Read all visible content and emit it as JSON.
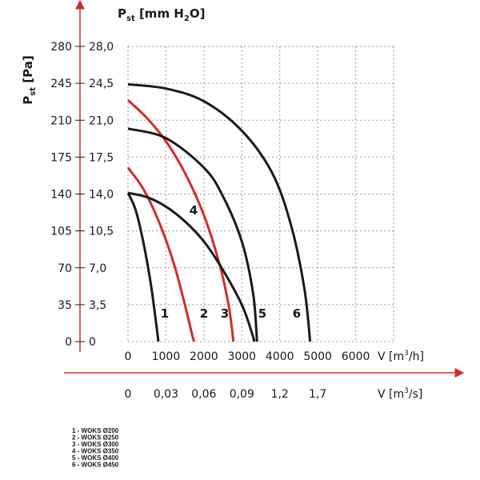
{
  "chart_data": {
    "type": "line",
    "y_label": [
      "P",
      "st",
      " [Pa]"
    ],
    "y2_label": [
      "P",
      "st",
      " [mm H",
      "2",
      "O]"
    ],
    "x_label": [
      "V [m",
      "3",
      "/h]"
    ],
    "x2_label": [
      "V [m",
      "3",
      "/s]"
    ],
    "xlim": [
      0,
      7000
    ],
    "ylim": [
      0,
      280
    ],
    "xticks": [
      0,
      1000,
      2000,
      3000,
      4000,
      5000,
      6000
    ],
    "x2tick_labels": [
      "0",
      "0,03",
      "0,06",
      "0,09",
      "1,2",
      "1,7"
    ],
    "yticks": [
      0,
      35,
      70,
      105,
      140,
      175,
      210,
      245,
      280
    ],
    "y2tick_labels": [
      "0",
      "3,5",
      "7,0",
      "10,5",
      "14,0",
      "17,5",
      "21,0",
      "24,5",
      "28,0"
    ],
    "grid": true,
    "series": [
      {
        "name": "1 - WOKS Ø200",
        "curve_label": "1",
        "color": "#1a1a1a",
        "x": [
          0,
          200,
          400,
          600,
          750,
          800
        ],
        "y": [
          141,
          125,
          95,
          55,
          15,
          0
        ]
      },
      {
        "name": "2 - WOKS Ø250",
        "curve_label": "2",
        "color": "#d42b2b",
        "x": [
          0,
          400,
          800,
          1200,
          1500,
          1700,
          1750
        ],
        "y": [
          165,
          145,
          115,
          75,
          35,
          5,
          0
        ]
      },
      {
        "name": "3 - WOKS Ø300",
        "curve_label": "3",
        "color": "#d42b2b",
        "x": [
          0,
          500,
          1000,
          1500,
          2000,
          2400,
          2650,
          2780
        ],
        "y": [
          229,
          212,
          190,
          160,
          120,
          75,
          35,
          0
        ]
      },
      {
        "name": "4 - WOKS Ø350",
        "curve_label": "4",
        "color": "#1a1a1a",
        "x": [
          0,
          500,
          1000,
          1500,
          2000,
          2500,
          3000,
          3250,
          3330
        ],
        "y": [
          141,
          137,
          128,
          114,
          95,
          68,
          35,
          10,
          0
        ]
      },
      {
        "name": "5 - WOKS Ø400",
        "curve_label": "5",
        "color": "#1a1a1a",
        "x": [
          0,
          1000,
          2000,
          2500,
          3000,
          3300,
          3400
        ],
        "y": [
          202,
          193,
          165,
          138,
          95,
          45,
          0
        ]
      },
      {
        "name": "6 - WOKS Ø450",
        "curve_label": "6",
        "color": "#1a1a1a",
        "x": [
          0,
          1000,
          2000,
          3000,
          3800,
          4300,
          4650,
          4800
        ],
        "y": [
          244,
          240,
          228,
          200,
          160,
          110,
          50,
          0
        ]
      }
    ]
  }
}
